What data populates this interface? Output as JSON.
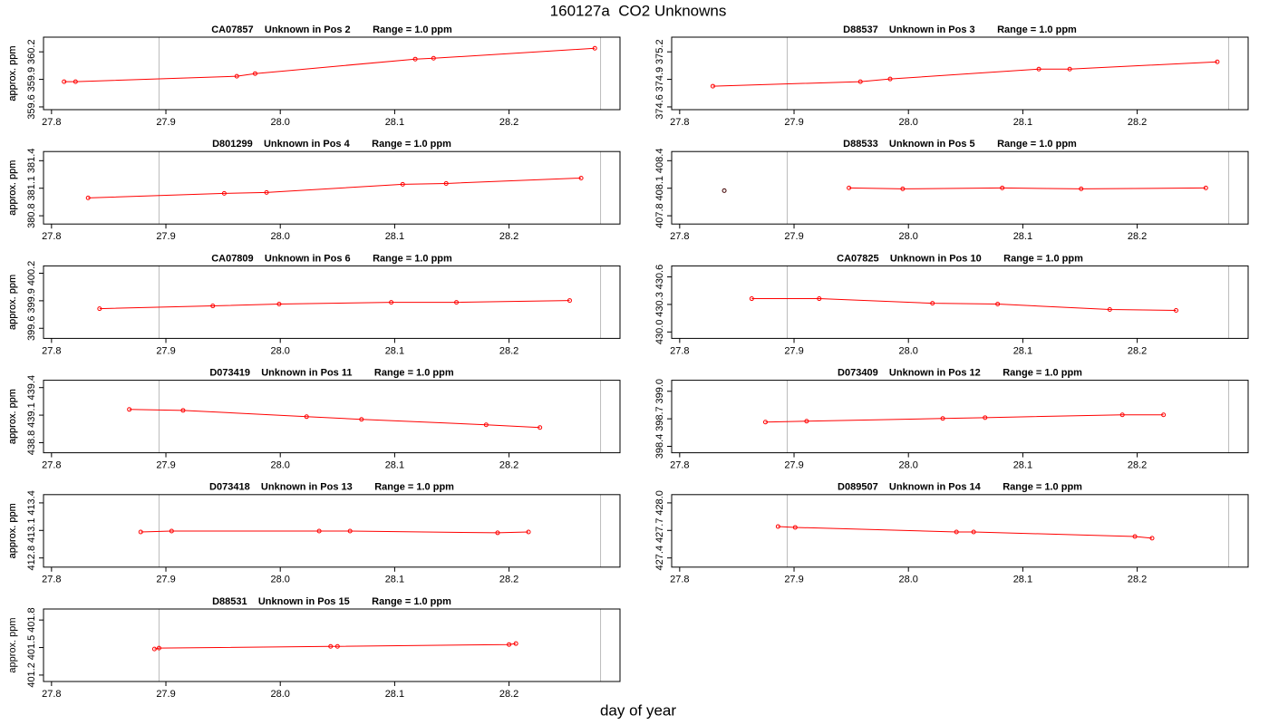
{
  "title": "160127a  CO2 Unknowns",
  "xlabel": "day of year",
  "chart_data": [
    {
      "type": "line",
      "title": "CA07857    Unknown in Pos 2        Range = 1.0 ppm",
      "ylabel": "approx. ppm",
      "color": "#ff0000",
      "x": [
        27.811,
        27.821,
        27.962,
        27.978,
        28.118,
        28.134,
        28.275
      ],
      "values": [
        359.875,
        359.875,
        359.934,
        359.963,
        360.121,
        360.13,
        360.239
      ],
      "xlim": [
        27.793,
        28.297
      ],
      "ylim": [
        359.57,
        360.36
      ],
      "xticks": [
        27.8,
        27.9,
        {
          "value": 28,
          "label": "28.0"
        },
        28.1,
        28.2
      ],
      "yticks": [
        359.6,
        359.9,
        360.2
      ],
      "vlines": [
        27.894,
        28.28
      ]
    },
    {
      "type": "line",
      "title": "D88537    Unknown in Pos 3        Range = 1.0 ppm",
      "ylabel": "approx. ppm",
      "color": "#ff0000",
      "x": [
        27.829,
        27.958,
        27.984,
        28.114,
        28.141,
        28.27
      ],
      "values": [
        374.826,
        374.875,
        374.904,
        375.012,
        375.012,
        375.091
      ],
      "xlim": [
        27.793,
        28.297
      ],
      "ylim": [
        374.57,
        375.36
      ],
      "xticks": [
        27.8,
        27.9,
        {
          "value": 28,
          "label": "28.0"
        },
        28.1,
        28.2
      ],
      "yticks": [
        374.6,
        374.9,
        375.2
      ],
      "vlines": [
        27.894,
        28.28
      ]
    },
    {
      "type": "line",
      "title": "D801299    Unknown in Pos 4        Range = 1.0 ppm",
      "ylabel": "approx. ppm",
      "color": "#ff0000",
      "x": [
        27.832,
        27.951,
        27.988,
        28.107,
        28.145,
        28.263
      ],
      "values": [
        380.995,
        381.044,
        381.054,
        381.143,
        381.152,
        381.211
      ],
      "xlim": [
        27.793,
        28.297
      ],
      "ylim": [
        380.71,
        381.5
      ],
      "xticks": [
        27.8,
        27.9,
        {
          "value": 28,
          "label": "28.0"
        },
        28.1,
        28.2
      ],
      "yticks": [
        380.8,
        381.1,
        381.4
      ],
      "vlines": [
        27.894,
        28.28
      ]
    },
    {
      "type": "line",
      "title": "D88533    Unknown in Pos 5        Range = 1.0 ppm",
      "ylabel": "approx. ppm",
      "color": "#ff0000",
      "x": [
        27.839,
        27.948,
        27.995,
        28.082,
        28.151,
        28.26
      ],
      "values": [
        408.074,
        408.103,
        408.093,
        408.103,
        408.093,
        408.103
      ],
      "point_colors": [
        "#400000",
        "#ff0000",
        "#ff0000",
        "#ff0000",
        "#ff0000",
        "#ff0000"
      ],
      "xlim": [
        27.793,
        28.297
      ],
      "ylim": [
        407.71,
        408.5
      ],
      "xticks": [
        27.8,
        27.9,
        {
          "value": 28,
          "label": "28.0"
        },
        28.1,
        28.2
      ],
      "yticks": [
        407.8,
        408.1,
        408.4
      ],
      "vlines": [
        27.894,
        28.28
      ]
    },
    {
      "type": "line",
      "title": "CA07809    Unknown in Pos 6        Range = 1.0 ppm",
      "ylabel": "approx. ppm",
      "color": "#ff0000",
      "x": [
        27.842,
        27.941,
        27.999,
        28.097,
        28.154,
        28.253
      ],
      "values": [
        399.814,
        399.844,
        399.864,
        399.883,
        399.883,
        399.903
      ],
      "xlim": [
        27.793,
        28.297
      ],
      "ylim": [
        399.49,
        400.28
      ],
      "xticks": [
        27.8,
        27.9,
        {
          "value": 28,
          "label": "28.0"
        },
        28.1,
        28.2
      ],
      "yticks": [
        399.6,
        399.9,
        400.2
      ],
      "vlines": [
        27.894,
        28.28
      ]
    },
    {
      "type": "line",
      "title": "CA07825    Unknown in Pos 10        Range = 1.0 ppm",
      "ylabel": "approx. ppm",
      "color": "#ff0000",
      "x": [
        27.863,
        27.922,
        28.021,
        28.078,
        28.176,
        28.234
      ],
      "values": [
        430.363,
        430.363,
        430.313,
        430.304,
        430.245,
        430.235
      ],
      "xlim": [
        27.793,
        28.297
      ],
      "ylim": [
        429.93,
        430.72
      ],
      "xticks": [
        27.8,
        27.9,
        {
          "value": 28,
          "label": "28.0"
        },
        28.1,
        28.2
      ],
      "yticks": [
        {
          "value": 430,
          "label": "430.0"
        },
        430.3,
        430.6
      ],
      "vlines": [
        27.894,
        28.28
      ]
    },
    {
      "type": "line",
      "title": "D073419    Unknown in Pos 11        Range = 1.0 ppm",
      "ylabel": "approx. ppm",
      "color": "#ff0000",
      "x": [
        27.868,
        27.915,
        28.023,
        28.071,
        28.18,
        28.227
      ],
      "values": [
        439.162,
        439.152,
        439.083,
        439.054,
        438.995,
        438.965
      ],
      "xlim": [
        27.793,
        28.297
      ],
      "ylim": [
        438.69,
        439.48
      ],
      "xticks": [
        27.8,
        27.9,
        {
          "value": 28,
          "label": "28.0"
        },
        28.1,
        28.2
      ],
      "yticks": [
        438.8,
        439.1,
        439.4
      ],
      "vlines": [
        27.894,
        28.28
      ]
    },
    {
      "type": "line",
      "title": "D073409    Unknown in Pos 12        Range = 1.0 ppm",
      "ylabel": "approx. ppm",
      "color": "#ff0000",
      "x": [
        27.875,
        27.911,
        28.03,
        28.067,
        28.187,
        28.223
      ],
      "values": [
        398.664,
        398.674,
        398.704,
        398.713,
        398.743,
        398.743
      ],
      "xlim": [
        27.793,
        28.297
      ],
      "ylim": [
        398.33,
        399.12
      ],
      "xticks": [
        27.8,
        27.9,
        {
          "value": 28,
          "label": "28.0"
        },
        28.1,
        28.2
      ],
      "yticks": [
        398.4,
        398.7,
        {
          "value": 399,
          "label": "399.0"
        }
      ],
      "vlines": [
        27.894,
        28.28
      ]
    },
    {
      "type": "line",
      "title": "D073418    Unknown in Pos 13        Range = 1.0 ppm",
      "ylabel": "approx. ppm",
      "color": "#ff0000",
      "x": [
        27.878,
        27.905,
        28.034,
        28.061,
        28.19,
        28.217
      ],
      "values": [
        413.083,
        413.093,
        413.093,
        413.093,
        413.074,
        413.083
      ],
      "xlim": [
        27.793,
        28.297
      ],
      "ylim": [
        412.7,
        413.49
      ],
      "xticks": [
        27.8,
        27.9,
        {
          "value": 28,
          "label": "28.0"
        },
        28.1,
        28.2
      ],
      "yticks": [
        412.8,
        413.1,
        413.4
      ],
      "vlines": [
        27.894,
        28.28
      ]
    },
    {
      "type": "line",
      "title": "D089507    Unknown in Pos 14        Range = 1.0 ppm",
      "ylabel": "approx. ppm",
      "color": "#ff0000",
      "x": [
        27.886,
        27.901,
        28.042,
        28.057,
        28.198,
        28.213
      ],
      "values": [
        427.742,
        427.733,
        427.683,
        427.683,
        427.634,
        427.615
      ],
      "xlim": [
        27.793,
        28.297
      ],
      "ylim": [
        427.3,
        428.09
      ],
      "xticks": [
        27.8,
        27.9,
        {
          "value": 28,
          "label": "28.0"
        },
        28.1,
        28.2
      ],
      "yticks": [
        427.4,
        427.7,
        {
          "value": 428,
          "label": "428.0"
        }
      ],
      "vlines": [
        27.894,
        28.28
      ]
    },
    {
      "type": "line",
      "title": "D88531    Unknown in Pos 15        Range = 1.0 ppm",
      "ylabel": "approx. ppm",
      "color": "#ff0000",
      "x": [
        27.89,
        27.894,
        28.044,
        28.05,
        28.2,
        28.206
      ],
      "values": [
        401.484,
        401.494,
        401.513,
        401.513,
        401.533,
        401.543
      ],
      "xlim": [
        27.793,
        28.297
      ],
      "ylim": [
        401.13,
        401.92
      ],
      "xticks": [
        27.8,
        27.9,
        {
          "value": 28,
          "label": "28.0"
        },
        28.1,
        28.2
      ],
      "yticks": [
        401.2,
        401.5,
        401.8
      ],
      "vlines": [
        27.894,
        28.28
      ]
    }
  ]
}
